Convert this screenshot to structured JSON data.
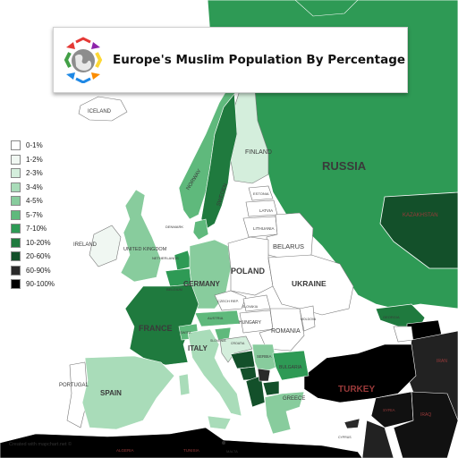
{
  "title": "Europe's Muslim Population By Percentage",
  "credit": "Created with mapchart.net ©",
  "legend": [
    {
      "label": "0-1%",
      "color": "#ffffff"
    },
    {
      "label": "1-2%",
      "color": "#f0f7f2"
    },
    {
      "label": "2-3%",
      "color": "#d4eedc"
    },
    {
      "label": "3-4%",
      "color": "#a9dcb9"
    },
    {
      "label": "4-5%",
      "color": "#88cc9d"
    },
    {
      "label": "5-7%",
      "color": "#5fb97c"
    },
    {
      "label": "7-10%",
      "color": "#2e9a55"
    },
    {
      "label": "10-20%",
      "color": "#1f7a3e"
    },
    {
      "label": "20-60%",
      "color": "#13502a"
    },
    {
      "label": "60-90%",
      "color": "#2a2a2a"
    },
    {
      "label": "90-100%",
      "color": "#000000"
    }
  ],
  "labels": {
    "iceland": "ICELAND",
    "finland": "FINLAND",
    "russia": "RUSSIA",
    "norway": "NORWAY",
    "sweden": "SWEDEN",
    "estonia": "ESTONIA",
    "latvia": "LATVIA",
    "lithuania": "LITHUANIA",
    "belarus": "BELARUS",
    "denmark": "DENMARK",
    "ireland": "IRELAND",
    "uk": "UNITED KINGDOM",
    "netherlands": "NETHERLANDS",
    "belgium": "BELGIUM",
    "germany": "GERMANY",
    "poland": "POLAND",
    "ukraine": "UKRAINE",
    "czech": "CZECH REP.",
    "slovakia": "SLOVAKIA",
    "hungary": "HUNGARY",
    "romania": "ROMANIA",
    "moldova": "MOLDOVA",
    "france": "FRANCE",
    "switzerland": "SWITZ.",
    "austria": "AUSTRIA",
    "italy": "ITALY",
    "slovenia": "SLOVENIA",
    "croatia": "CROATIA",
    "serbia": "SERBIA",
    "bulgaria": "BULGARIA",
    "greece": "GREECE",
    "turkey": "TURKEY",
    "portugal": "PORTUGAL",
    "spain": "SPAIN",
    "kazakhstan": "KAZAKHSTAN",
    "georgia": "GEORGIA",
    "cyprus": "CYPRUS",
    "malta": "MALTA",
    "iraq": "IRAQ",
    "syria": "SYRIA",
    "iran": "IRAN",
    "tunisia": "TUNISIA",
    "algeria": "ALGERIA"
  },
  "icons": {
    "logo": "mapchart-globe-logo"
  }
}
